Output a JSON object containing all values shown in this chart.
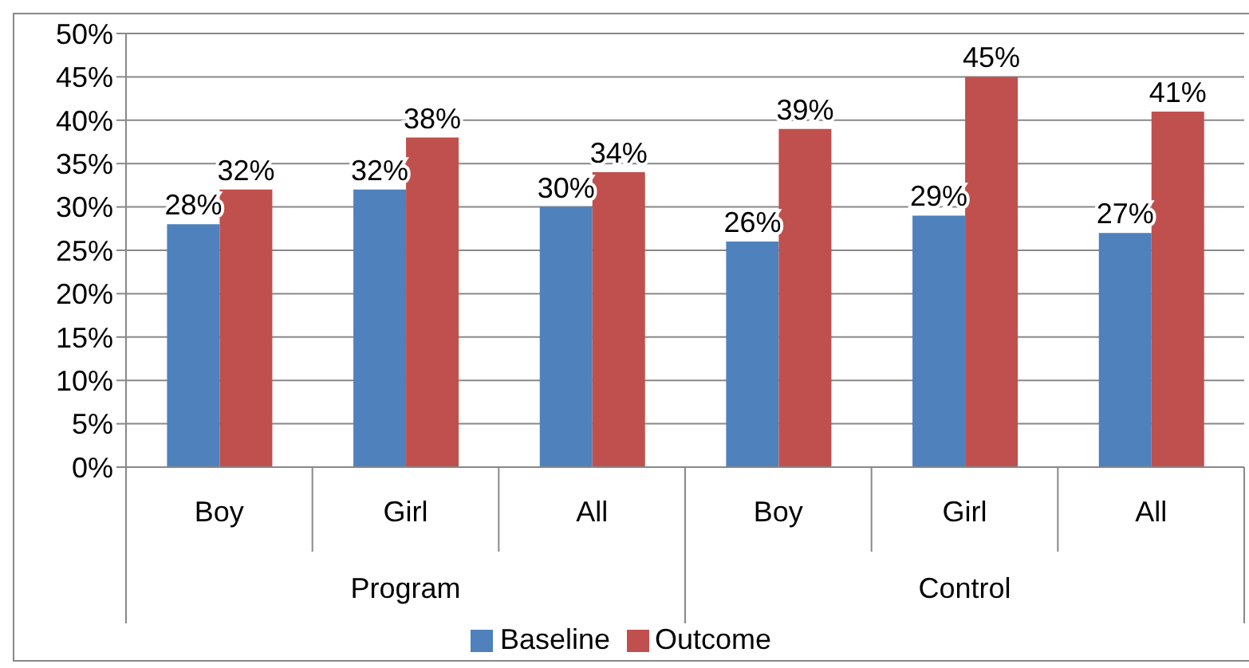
{
  "chart_data": {
    "type": "bar",
    "categories": [
      "Boy",
      "Girl",
      "All",
      "Boy",
      "Girl",
      "All"
    ],
    "annotations": [
      "Program",
      "Control"
    ],
    "series": [
      {
        "name": "Baseline",
        "color": "#4f81bd",
        "values": [
          28,
          32,
          30,
          26,
          29,
          27
        ],
        "value_labels": [
          "28%",
          "32%",
          "30%",
          "26%",
          "29%",
          "27%"
        ]
      },
      {
        "name": "Outcome",
        "color": "#c0504d",
        "values": [
          32,
          38,
          34,
          39,
          45,
          41
        ],
        "value_labels": [
          "32%",
          "38%",
          "34%",
          "39%",
          "45%",
          "41%"
        ]
      }
    ],
    "ylim": [
      0,
      50
    ],
    "yticks": [
      {
        "value": 0,
        "label": "0%"
      },
      {
        "value": 5,
        "label": "5%"
      },
      {
        "value": 10,
        "label": "10%"
      },
      {
        "value": 15,
        "label": "15%"
      },
      {
        "value": 20,
        "label": "20%"
      },
      {
        "value": 25,
        "label": "25%"
      },
      {
        "value": 30,
        "label": "30%"
      },
      {
        "value": 35,
        "label": "35%"
      },
      {
        "value": 40,
        "label": "40%"
      },
      {
        "value": 45,
        "label": "45%"
      },
      {
        "value": 50,
        "label": "50%"
      }
    ],
    "grid": "y",
    "legend": "bottom"
  }
}
